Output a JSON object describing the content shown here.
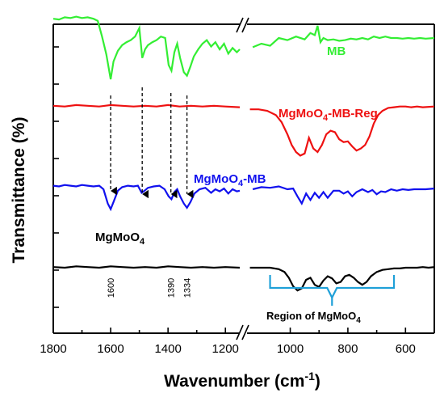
{
  "chart_data": {
    "type": "line",
    "xlabel_main": "Wavenumber (cm",
    "xlabel_sup": "-1",
    "xlabel_close": ")",
    "ylabel": "Transmittance (%)",
    "x_ticks_left": [
      "1800",
      "1600",
      "1400",
      "1200"
    ],
    "x_ticks_right": [
      "1000",
      "800",
      "600"
    ],
    "axis_break": "//",
    "x_segments": [
      {
        "xlim": [
          1800,
          1150
        ]
      },
      {
        "xlim": [
          1150,
          500
        ]
      }
    ],
    "series": [
      {
        "name": "MB",
        "color": "#33ee33",
        "label_parts": [
          "MB"
        ],
        "offset": 3,
        "points": [
          [
            1800,
            0.85
          ],
          [
            1780,
            0.84
          ],
          [
            1760,
            0.87
          ],
          [
            1740,
            0.86
          ],
          [
            1720,
            0.88
          ],
          [
            1700,
            0.86
          ],
          [
            1680,
            0.87
          ],
          [
            1660,
            0.85
          ],
          [
            1645,
            0.82
          ],
          [
            1630,
            0.6
          ],
          [
            1615,
            0.35
          ],
          [
            1600,
            0.0
          ],
          [
            1590,
            0.25
          ],
          [
            1575,
            0.4
          ],
          [
            1560,
            0.48
          ],
          [
            1545,
            0.52
          ],
          [
            1530,
            0.55
          ],
          [
            1515,
            0.6
          ],
          [
            1500,
            0.72
          ],
          [
            1490,
            0.3
          ],
          [
            1480,
            0.42
          ],
          [
            1470,
            0.48
          ],
          [
            1455,
            0.52
          ],
          [
            1440,
            0.55
          ],
          [
            1425,
            0.6
          ],
          [
            1410,
            0.58
          ],
          [
            1398,
            0.2
          ],
          [
            1388,
            0.12
          ],
          [
            1378,
            0.38
          ],
          [
            1368,
            0.5
          ],
          [
            1358,
            0.3
          ],
          [
            1345,
            0.1
          ],
          [
            1334,
            0.05
          ],
          [
            1322,
            0.18
          ],
          [
            1310,
            0.32
          ],
          [
            1295,
            0.42
          ],
          [
            1280,
            0.5
          ],
          [
            1265,
            0.55
          ],
          [
            1250,
            0.46
          ],
          [
            1235,
            0.52
          ],
          [
            1220,
            0.42
          ],
          [
            1205,
            0.5
          ],
          [
            1190,
            0.36
          ],
          [
            1175,
            0.44
          ],
          [
            1160,
            0.38
          ],
          [
            1150,
            0.42
          ],
          [
            1130,
            0.45
          ],
          [
            1100,
            0.5
          ],
          [
            1070,
            0.47
          ],
          [
            1040,
            0.58
          ],
          [
            1010,
            0.55
          ],
          [
            980,
            0.6
          ],
          [
            950,
            0.56
          ],
          [
            930,
            0.65
          ],
          [
            915,
            0.62
          ],
          [
            905,
            0.75
          ],
          [
            895,
            0.52
          ],
          [
            885,
            0.58
          ],
          [
            870,
            0.55
          ],
          [
            850,
            0.56
          ],
          [
            830,
            0.54
          ],
          [
            810,
            0.55
          ],
          [
            790,
            0.57
          ],
          [
            770,
            0.56
          ],
          [
            750,
            0.58
          ],
          [
            730,
            0.56
          ],
          [
            710,
            0.6
          ],
          [
            690,
            0.58
          ],
          [
            670,
            0.6
          ],
          [
            650,
            0.58
          ],
          [
            630,
            0.58
          ],
          [
            610,
            0.57
          ],
          [
            590,
            0.58
          ],
          [
            570,
            0.57
          ],
          [
            550,
            0.58
          ],
          [
            530,
            0.57
          ],
          [
            500,
            0.58
          ]
        ]
      },
      {
        "name": "MgMoO4-MB-Reg",
        "color": "#ee1111",
        "label_parts": [
          "MgMoO",
          "4",
          "-MB-Reg"
        ],
        "offset": 2,
        "points": [
          [
            1800,
            0.65
          ],
          [
            1760,
            0.64
          ],
          [
            1720,
            0.66
          ],
          [
            1680,
            0.65
          ],
          [
            1640,
            0.64
          ],
          [
            1600,
            0.66
          ],
          [
            1560,
            0.65
          ],
          [
            1520,
            0.64
          ],
          [
            1480,
            0.65
          ],
          [
            1440,
            0.64
          ],
          [
            1400,
            0.66
          ],
          [
            1360,
            0.64
          ],
          [
            1320,
            0.65
          ],
          [
            1280,
            0.64
          ],
          [
            1240,
            0.65
          ],
          [
            1200,
            0.64
          ],
          [
            1150,
            0.63
          ],
          [
            1140,
            0.6
          ],
          [
            1110,
            0.6
          ],
          [
            1080,
            0.58
          ],
          [
            1050,
            0.52
          ],
          [
            1030,
            0.42
          ],
          [
            1010,
            0.25
          ],
          [
            995,
            0.1
          ],
          [
            980,
            0.0
          ],
          [
            965,
            -0.05
          ],
          [
            950,
            -0.02
          ],
          [
            935,
            0.2
          ],
          [
            920,
            0.05
          ],
          [
            905,
            0.0
          ],
          [
            890,
            0.1
          ],
          [
            875,
            0.25
          ],
          [
            860,
            0.3
          ],
          [
            845,
            0.28
          ],
          [
            830,
            0.18
          ],
          [
            815,
            0.14
          ],
          [
            800,
            0.15
          ],
          [
            785,
            0.08
          ],
          [
            770,
            0.02
          ],
          [
            755,
            0.05
          ],
          [
            740,
            0.1
          ],
          [
            725,
            0.22
          ],
          [
            710,
            0.4
          ],
          [
            695,
            0.52
          ],
          [
            680,
            0.58
          ],
          [
            660,
            0.62
          ],
          [
            640,
            0.63
          ],
          [
            620,
            0.64
          ],
          [
            600,
            0.64
          ],
          [
            580,
            0.63
          ],
          [
            560,
            0.64
          ],
          [
            540,
            0.63
          ],
          [
            500,
            0.64
          ]
        ]
      },
      {
        "name": "MgMoO4-MB",
        "color": "#1111ee",
        "label_parts": [
          "MgMoO",
          "4",
          "-MB"
        ],
        "offset": 1,
        "points": [
          [
            1800,
            0.55
          ],
          [
            1780,
            0.54
          ],
          [
            1760,
            0.56
          ],
          [
            1740,
            0.55
          ],
          [
            1720,
            0.54
          ],
          [
            1700,
            0.56
          ],
          [
            1680,
            0.55
          ],
          [
            1660,
            0.54
          ],
          [
            1640,
            0.55
          ],
          [
            1625,
            0.5
          ],
          [
            1610,
            0.3
          ],
          [
            1600,
            0.22
          ],
          [
            1590,
            0.32
          ],
          [
            1575,
            0.48
          ],
          [
            1560,
            0.53
          ],
          [
            1540,
            0.55
          ],
          [
            1520,
            0.54
          ],
          [
            1505,
            0.55
          ],
          [
            1492,
            0.45
          ],
          [
            1482,
            0.48
          ],
          [
            1470,
            0.52
          ],
          [
            1450,
            0.54
          ],
          [
            1430,
            0.55
          ],
          [
            1412,
            0.5
          ],
          [
            1398,
            0.4
          ],
          [
            1388,
            0.36
          ],
          [
            1378,
            0.46
          ],
          [
            1368,
            0.5
          ],
          [
            1358,
            0.4
          ],
          [
            1345,
            0.3
          ],
          [
            1334,
            0.24
          ],
          [
            1322,
            0.32
          ],
          [
            1308,
            0.44
          ],
          [
            1290,
            0.5
          ],
          [
            1270,
            0.52
          ],
          [
            1250,
            0.45
          ],
          [
            1235,
            0.5
          ],
          [
            1220,
            0.47
          ],
          [
            1205,
            0.51
          ],
          [
            1190,
            0.44
          ],
          [
            1175,
            0.5
          ],
          [
            1160,
            0.47
          ],
          [
            1150,
            0.48
          ],
          [
            1130,
            0.5
          ],
          [
            1100,
            0.53
          ],
          [
            1070,
            0.52
          ],
          [
            1040,
            0.54
          ],
          [
            1010,
            0.5
          ],
          [
            990,
            0.51
          ],
          [
            975,
            0.4
          ],
          [
            960,
            0.3
          ],
          [
            945,
            0.44
          ],
          [
            930,
            0.35
          ],
          [
            915,
            0.45
          ],
          [
            900,
            0.38
          ],
          [
            885,
            0.46
          ],
          [
            870,
            0.38
          ],
          [
            850,
            0.48
          ],
          [
            830,
            0.48
          ],
          [
            815,
            0.44
          ],
          [
            800,
            0.47
          ],
          [
            785,
            0.4
          ],
          [
            770,
            0.46
          ],
          [
            750,
            0.5
          ],
          [
            730,
            0.46
          ],
          [
            715,
            0.49
          ],
          [
            700,
            0.43
          ],
          [
            685,
            0.47
          ],
          [
            670,
            0.46
          ],
          [
            650,
            0.5
          ],
          [
            630,
            0.48
          ],
          [
            610,
            0.5
          ],
          [
            590,
            0.49
          ],
          [
            570,
            0.5
          ],
          [
            550,
            0.5
          ],
          [
            530,
            0.5
          ],
          [
            500,
            0.51
          ]
        ]
      },
      {
        "name": "MgMoO4",
        "color": "#000000",
        "label_parts": [
          "MgMoO",
          "4",
          ""
        ],
        "offset": 0,
        "points": [
          [
            1800,
            0.43
          ],
          [
            1760,
            0.42
          ],
          [
            1720,
            0.44
          ],
          [
            1680,
            0.43
          ],
          [
            1640,
            0.42
          ],
          [
            1600,
            0.44
          ],
          [
            1560,
            0.43
          ],
          [
            1520,
            0.42
          ],
          [
            1480,
            0.43
          ],
          [
            1440,
            0.42
          ],
          [
            1400,
            0.44
          ],
          [
            1360,
            0.43
          ],
          [
            1320,
            0.42
          ],
          [
            1280,
            0.43
          ],
          [
            1240,
            0.42
          ],
          [
            1200,
            0.43
          ],
          [
            1150,
            0.42
          ],
          [
            1140,
            0.42
          ],
          [
            1100,
            0.42
          ],
          [
            1070,
            0.42
          ],
          [
            1040,
            0.4
          ],
          [
            1020,
            0.36
          ],
          [
            1005,
            0.28
          ],
          [
            990,
            0.16
          ],
          [
            975,
            0.1
          ],
          [
            960,
            0.13
          ],
          [
            945,
            0.25
          ],
          [
            930,
            0.28
          ],
          [
            915,
            0.18
          ],
          [
            900,
            0.15
          ],
          [
            885,
            0.24
          ],
          [
            870,
            0.3
          ],
          [
            855,
            0.27
          ],
          [
            840,
            0.2
          ],
          [
            825,
            0.22
          ],
          [
            810,
            0.3
          ],
          [
            795,
            0.32
          ],
          [
            780,
            0.28
          ],
          [
            765,
            0.22
          ],
          [
            750,
            0.18
          ],
          [
            735,
            0.22
          ],
          [
            720,
            0.3
          ],
          [
            700,
            0.36
          ],
          [
            680,
            0.39
          ],
          [
            660,
            0.4
          ],
          [
            640,
            0.41
          ],
          [
            620,
            0.41
          ],
          [
            600,
            0.42
          ],
          [
            580,
            0.42
          ],
          [
            560,
            0.42
          ],
          [
            540,
            0.43
          ],
          [
            520,
            0.42
          ],
          [
            500,
            0.43
          ]
        ]
      }
    ],
    "peak_labels": [
      "1600",
      "1390",
      "1334"
    ],
    "peak_positions": [
      1600,
      1490,
      1390,
      1334
    ],
    "region_label_main": "Region of MgMoO",
    "region_label_sub": "4",
    "region_range": [
      1070,
      640
    ]
  }
}
